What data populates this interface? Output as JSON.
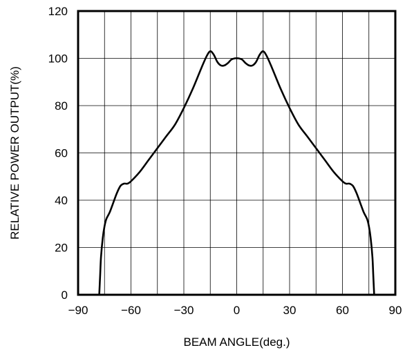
{
  "chart_data": {
    "type": "line",
    "title": "",
    "xlabel": "BEAM ANGLE(deg.)",
    "ylabel": "RELATIVE POWER OUTPUT(%)",
    "xlim": [
      -90,
      90
    ],
    "ylim": [
      0,
      120
    ],
    "xticks": [
      -90,
      -60,
      -30,
      0,
      30,
      60,
      90
    ],
    "yticks": [
      0,
      20,
      40,
      60,
      80,
      100,
      120
    ],
    "xtick_labels": [
      "−90",
      "−60",
      "−30",
      "0",
      "30",
      "60",
      "90"
    ],
    "ytick_labels": [
      "0",
      "20",
      "40",
      "60",
      "80",
      "100",
      "120"
    ],
    "x_grid_step": 15,
    "y_grid_step": 20,
    "grid": true,
    "legend": "none",
    "series": [
      {
        "x": [
          -78,
          -77.5,
          -77,
          -76,
          -75,
          -74,
          -72,
          -70,
          -68,
          -66,
          -64,
          -62,
          -60,
          -55,
          -50,
          -45,
          -40,
          -35,
          -30,
          -25,
          -20,
          -17,
          -15,
          -13,
          -11,
          -9,
          -7,
          -5,
          -3,
          -1,
          0,
          1,
          3,
          5,
          7,
          9,
          11,
          13,
          15,
          17,
          20,
          25,
          30,
          35,
          40,
          45,
          50,
          55,
          60,
          62,
          64,
          66,
          68,
          70,
          72,
          74,
          75,
          76,
          77,
          77.5,
          78
        ],
        "y": [
          0,
          8,
          16,
          24,
          29,
          32,
          35,
          39,
          43,
          46,
          47,
          47,
          48,
          52,
          57,
          62,
          67,
          72,
          79,
          87,
          96,
          101,
          103,
          101.5,
          98.5,
          97,
          97,
          98,
          99.5,
          100,
          100,
          100,
          99.5,
          98,
          97,
          97,
          98.5,
          101.5,
          103,
          101,
          96,
          87,
          79,
          72,
          67,
          62,
          57,
          52,
          48,
          47,
          47,
          46,
          43,
          39,
          35,
          32,
          29,
          24,
          16,
          8,
          0
        ]
      }
    ]
  }
}
